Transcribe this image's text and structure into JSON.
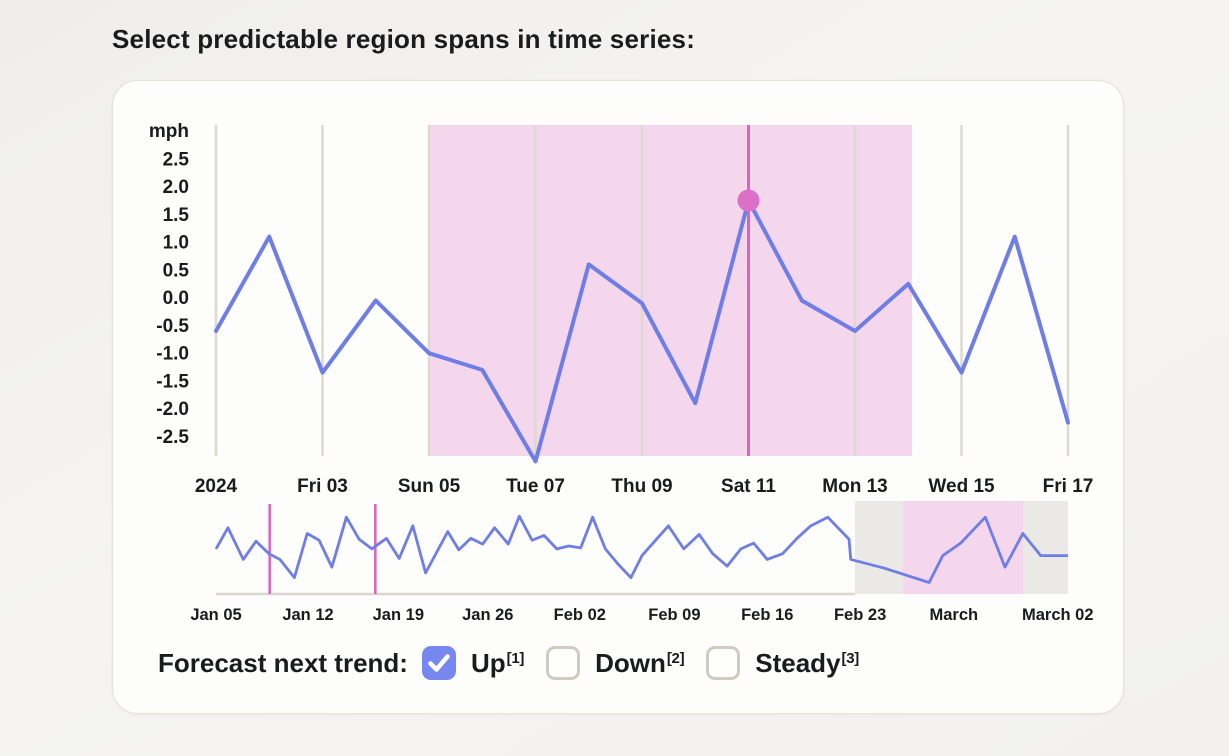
{
  "page_title": "Select predictable region spans in time series:",
  "colors": {
    "line": "#6e7ee6",
    "highlight_fill": "#f4d6ed",
    "marker": "#dc6fc6",
    "cursor_line": "#d964be",
    "gridline": "#ddd9d1",
    "mini_dim_fill": "#ebe9e5",
    "mini_axis_line": "#d9d6cf",
    "checkbox_checked": "#7687ef",
    "text": "#1a1b1d"
  },
  "chart_data": [
    {
      "type": "line",
      "role": "main-detail-chart",
      "unit_label": "mph",
      "y_tick_labels": [
        "2.5",
        "2.0",
        "1.5",
        "1.0",
        "0.5",
        "0.0",
        "-0.5",
        "-1.0",
        "-1.5",
        "-2.0",
        "-2.5"
      ],
      "y_tick_values": [
        2.5,
        2.0,
        1.5,
        1.0,
        0.5,
        0.0,
        -0.5,
        -1.0,
        -1.5,
        -2.0,
        -2.5
      ],
      "ylim": [
        -2.9,
        3.1
      ],
      "grid": "vertical-only",
      "x_tick_labels": [
        "2024",
        "Fri 03",
        "Sun 05",
        "Tue 07",
        "Thu 09",
        "Sat 11",
        "Mon 13",
        "Wed 15",
        "Fri 17"
      ],
      "x_tick_day_index": [
        0,
        2,
        4,
        6,
        8,
        10,
        12,
        14,
        16
      ],
      "values": [
        -0.6,
        1.1,
        -1.35,
        -0.05,
        -1.0,
        -1.3,
        -2.95,
        0.6,
        -0.1,
        -1.9,
        1.75,
        -0.05,
        -0.6,
        0.25,
        -1.35,
        1.1,
        -2.25
      ],
      "highlight_span_day_index": [
        4,
        13.07
      ],
      "selected_point": {
        "day_index": 10,
        "value": 1.75,
        "tick_label": "Sat 11"
      }
    },
    {
      "type": "line",
      "role": "overview-brush-chart",
      "x_tick_labels": [
        "Jan 05",
        "Jan 12",
        "Jan 19",
        "Jan 26",
        "Feb 02",
        "Feb 09",
        "Feb 16",
        "Feb 23",
        "March",
        "March 02"
      ],
      "x_tick_pct": [
        0,
        10.8,
        21.4,
        31.9,
        42.7,
        53.8,
        64.7,
        75.6,
        86.6,
        98.8
      ],
      "points_pct": [
        [
          0,
          53
        ],
        [
          1.4,
          31
        ],
        [
          3.2,
          64
        ],
        [
          4.7,
          45
        ],
        [
          6.2,
          58
        ],
        [
          7.5,
          64
        ],
        [
          9.2,
          83
        ],
        [
          10.7,
          37
        ],
        [
          12.1,
          44
        ],
        [
          13.6,
          72
        ],
        [
          15.3,
          20
        ],
        [
          16.8,
          43
        ],
        [
          18.3,
          53
        ],
        [
          20,
          42
        ],
        [
          21.5,
          63
        ],
        [
          23.1,
          29
        ],
        [
          24.6,
          78
        ],
        [
          27.2,
          35
        ],
        [
          28.5,
          54
        ],
        [
          29.9,
          42
        ],
        [
          31.3,
          48
        ],
        [
          32.7,
          31
        ],
        [
          34.3,
          48
        ],
        [
          35.6,
          19
        ],
        [
          37.1,
          44
        ],
        [
          38.5,
          39
        ],
        [
          40,
          53
        ],
        [
          41.4,
          50
        ],
        [
          42.8,
          52
        ],
        [
          44.2,
          20
        ],
        [
          45.7,
          53
        ],
        [
          47.2,
          69
        ],
        [
          48.7,
          83
        ],
        [
          50,
          60
        ],
        [
          53.1,
          29
        ],
        [
          54.9,
          53
        ],
        [
          56.7,
          38
        ],
        [
          58.3,
          58
        ],
        [
          60,
          71
        ],
        [
          61.6,
          53
        ],
        [
          63.1,
          47
        ],
        [
          64.7,
          64
        ],
        [
          66.5,
          58
        ],
        [
          68.2,
          42
        ],
        [
          69.8,
          29
        ],
        [
          71.8,
          20
        ],
        [
          74.3,
          43
        ],
        [
          74.5,
          64
        ],
        [
          78.4,
          73
        ],
        [
          83.7,
          88
        ],
        [
          85.3,
          60
        ],
        [
          87.4,
          47
        ],
        [
          90.3,
          20
        ],
        [
          92.6,
          72
        ],
        [
          94.7,
          37
        ],
        [
          96.8,
          60
        ],
        [
          100,
          60
        ]
      ],
      "dim_region_pct": [
        75,
        100
      ],
      "highlight_region_pct": [
        80.6,
        94.7
      ],
      "cursor_lines_pct": [
        6.3,
        18.7
      ]
    }
  ],
  "forecast": {
    "label": "Forecast next trend:",
    "options": [
      {
        "label": "Up",
        "sup": "[1]",
        "checked": true
      },
      {
        "label": "Down",
        "sup": "[2]",
        "checked": false
      },
      {
        "label": "Steady",
        "sup": "[3]",
        "checked": false
      }
    ]
  }
}
